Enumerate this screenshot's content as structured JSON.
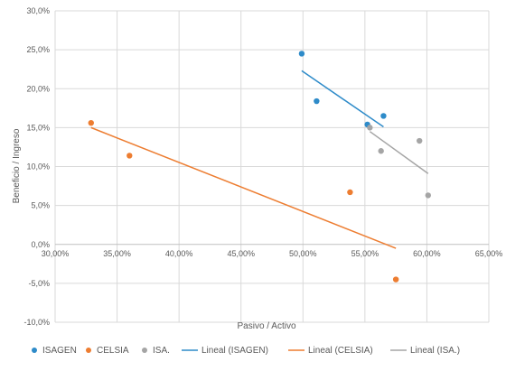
{
  "chart_data": {
    "type": "scatter",
    "title": "",
    "xlabel": "Pasivo / Activo",
    "ylabel": "Beneficio / Ingreso",
    "xlim": [
      30,
      65
    ],
    "ylim": [
      -10,
      30
    ],
    "x_ticks": [
      30,
      35,
      40,
      45,
      50,
      55,
      60,
      65
    ],
    "x_tick_labels": [
      "30,00%",
      "35,00%",
      "40,00%",
      "45,00%",
      "50,00%",
      "55,00%",
      "60,00%",
      "65,00%"
    ],
    "y_ticks": [
      -10,
      -5,
      0,
      5,
      10,
      15,
      20,
      25,
      30
    ],
    "y_tick_labels": [
      "-10,0%",
      "-5,0%",
      "0,0%",
      "5,0%",
      "10,0%",
      "15,0%",
      "20,0%",
      "25,0%",
      "30,0%"
    ],
    "grid": true,
    "legend_position": "bottom",
    "series": [
      {
        "name": "ISAGEN",
        "color": "#2E8BC9",
        "points": [
          [
            49.9,
            24.5
          ],
          [
            51.1,
            18.4
          ],
          [
            55.2,
            15.4
          ],
          [
            56.5,
            16.5
          ]
        ]
      },
      {
        "name": "CELSIA",
        "color": "#ED7D31",
        "points": [
          [
            32.9,
            15.6
          ],
          [
            36.0,
            11.4
          ],
          [
            53.8,
            6.7
          ],
          [
            57.5,
            -4.5
          ]
        ]
      },
      {
        "name": "ISA.",
        "color": "#A5A5A5",
        "points": [
          [
            55.4,
            15.0
          ],
          [
            56.3,
            12.0
          ],
          [
            59.4,
            13.3
          ],
          [
            60.1,
            6.3
          ]
        ]
      }
    ],
    "trendlines": [
      {
        "name": "Lineal (ISAGEN)",
        "color": "#2E8BC9",
        "from": [
          49.9,
          22.3
        ],
        "to": [
          56.5,
          15.1
        ]
      },
      {
        "name": "Lineal (CELSIA)",
        "color": "#ED7D31",
        "from": [
          32.9,
          15.0
        ],
        "to": [
          57.5,
          -0.5
        ]
      },
      {
        "name": "Lineal (ISA.)",
        "color": "#A5A5A5",
        "from": [
          55.4,
          14.5
        ],
        "to": [
          60.1,
          9.1
        ]
      }
    ]
  }
}
